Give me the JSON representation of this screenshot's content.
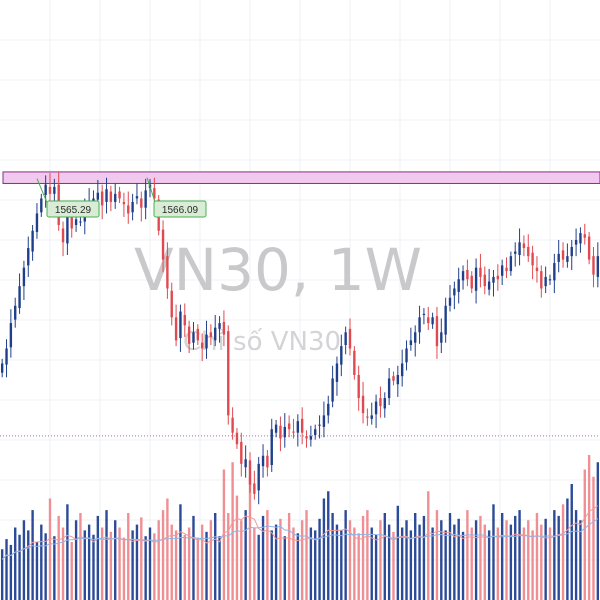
{
  "watermark": {
    "symbol": "VN30, 1W",
    "name": "Chỉ số VN30"
  },
  "colors": {
    "up": "#1f3f8a",
    "down": "#e0494f",
    "zone_fill": "#f1c9ee",
    "zone_stroke": "#8a2a86",
    "label_fill": "#d8ecd6",
    "label_stroke": "#4caf50",
    "vol_up": "#2b4a97",
    "vol_down": "#f08f93",
    "ma_fast": "#ef9a9a",
    "ma_slow": "#90b4e8",
    "grid": "#eef0f4"
  },
  "annotations": [
    {
      "text": "1565.29",
      "value": 1565.29
    },
    {
      "text": "1566.09",
      "value": 1566.09
    }
  ],
  "chart_data": {
    "type": "candlestick",
    "timeframe": "1W",
    "y_range": [
      1200,
      1720
    ],
    "resistance_zone": [
      1561,
      1571
    ],
    "volume_reference_level": 0.73,
    "series_close": [
      1405,
      1418,
      1440,
      1455,
      1472,
      1488,
      1505,
      1520,
      1535,
      1548,
      1560,
      1552,
      1558,
      1525,
      1510,
      1532,
      1522,
      1530,
      1528,
      1540,
      1545,
      1548,
      1553,
      1542,
      1556,
      1545,
      1552,
      1548,
      1543,
      1535,
      1545,
      1550,
      1540,
      1555,
      1560,
      1548,
      1520,
      1495,
      1470,
      1445,
      1425,
      1450,
      1438,
      1422,
      1432,
      1425,
      1418,
      1430,
      1428,
      1436,
      1440,
      1430,
      1360,
      1345,
      1335,
      1318,
      1322,
      1300,
      1292,
      1318,
      1325,
      1315,
      1348,
      1352,
      1340,
      1350,
      1348,
      1345,
      1355,
      1345,
      1340,
      1342,
      1348,
      1352,
      1360,
      1370,
      1392,
      1405,
      1420,
      1432,
      1418,
      1395,
      1375,
      1362,
      1358,
      1360,
      1372,
      1368,
      1375,
      1392,
      1390,
      1395,
      1405,
      1418,
      1425,
      1432,
      1445,
      1448,
      1440,
      1445,
      1420,
      1432,
      1455,
      1462,
      1470,
      1478,
      1485,
      1478,
      1470,
      1488,
      1480,
      1472,
      1476,
      1480,
      1478,
      1490,
      1485,
      1498,
      1502,
      1510,
      1505,
      1498,
      1490,
      1485,
      1470,
      1480,
      1478,
      1492,
      1500,
      1495,
      1498,
      1506,
      1512,
      1518,
      1514,
      1495,
      1482,
      1498
    ],
    "volume_relative": [
      0.35,
      0.42,
      0.38,
      0.5,
      0.45,
      0.55,
      0.48,
      0.62,
      0.4,
      0.52,
      0.46,
      0.7,
      0.44,
      0.58,
      0.5,
      0.66,
      0.4,
      0.55,
      0.6,
      0.48,
      0.52,
      0.45,
      0.58,
      0.5,
      0.62,
      0.47,
      0.55,
      0.5,
      0.43,
      0.6,
      0.48,
      0.52,
      0.57,
      0.44,
      0.5,
      0.46,
      0.55,
      0.62,
      0.7,
      0.52,
      0.48,
      0.66,
      0.45,
      0.5,
      0.58,
      0.43,
      0.52,
      0.47,
      0.55,
      0.6,
      0.44,
      0.9,
      0.6,
      0.95,
      0.72,
      0.55,
      0.62,
      0.85,
      0.5,
      0.45,
      0.58,
      0.62,
      0.48,
      0.52,
      0.56,
      0.44,
      0.6,
      0.5,
      0.46,
      0.55,
      0.62,
      0.5,
      0.48,
      0.56,
      0.7,
      0.75,
      0.6,
      0.52,
      0.48,
      0.62,
      0.55,
      0.5,
      0.46,
      0.58,
      0.62,
      0.5,
      0.45,
      0.55,
      0.6,
      0.52,
      0.47,
      0.65,
      0.5,
      0.55,
      0.48,
      0.6,
      0.52,
      0.58,
      0.75,
      0.5,
      0.62,
      0.55,
      0.48,
      0.6,
      0.52,
      0.56,
      0.47,
      0.62,
      0.5,
      0.55,
      0.58,
      0.52,
      0.48,
      0.66,
      0.5,
      0.6,
      0.55,
      0.52,
      0.58,
      0.62,
      0.5,
      0.55,
      0.48,
      0.6,
      0.52,
      0.56,
      0.5,
      0.62,
      0.58,
      0.66,
      0.7,
      0.8,
      0.62,
      0.55,
      0.9,
      1.0,
      0.85,
      0.95
    ]
  }
}
